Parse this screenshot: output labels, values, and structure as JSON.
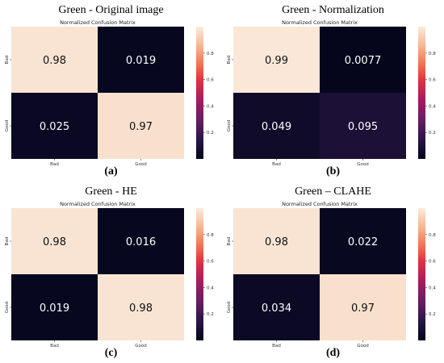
{
  "chart_data": [
    {
      "type": "heatmap",
      "heading": "Green - Original image",
      "caption": "(a)",
      "title": "Normalized Confusion Matrix",
      "row_labels": [
        "Bad",
        "Good"
      ],
      "col_labels": [
        "Bad",
        "Good"
      ],
      "values": [
        [
          0.98,
          0.019
        ],
        [
          0.025,
          0.97
        ]
      ],
      "cell_labels": [
        [
          "0.98",
          "0.019"
        ],
        [
          "0.025",
          "0.97"
        ]
      ],
      "colorbar": {
        "min": 0,
        "max": 1,
        "ticks": [
          "0.2",
          "0.4",
          "0.6",
          "0.8"
        ]
      }
    },
    {
      "type": "heatmap",
      "heading": "Green - Normalization",
      "caption": "(b)",
      "title": "Normalized Confusion Matrix",
      "row_labels": [
        "Bad",
        "Good"
      ],
      "col_labels": [
        "Bad",
        "Good"
      ],
      "values": [
        [
          0.99,
          0.0077
        ],
        [
          0.049,
          0.095
        ]
      ],
      "cell_labels": [
        [
          "0.99",
          "0.0077"
        ],
        [
          "0.049",
          "0.095"
        ]
      ],
      "colorbar": {
        "min": 0,
        "max": 1,
        "ticks": [
          "0.2",
          "0.4",
          "0.6",
          "0.8"
        ]
      }
    },
    {
      "type": "heatmap",
      "heading": "Green - HE",
      "caption": "(c)",
      "title": "Normalized Confusion Matrix",
      "row_labels": [
        "Bad",
        "Good"
      ],
      "col_labels": [
        "Bad",
        "Good"
      ],
      "values": [
        [
          0.98,
          0.016
        ],
        [
          0.019,
          0.98
        ]
      ],
      "cell_labels": [
        [
          "0.98",
          "0.016"
        ],
        [
          "0.019",
          "0.98"
        ]
      ],
      "colorbar": {
        "min": 0,
        "max": 1,
        "ticks": [
          "0.2",
          "0.4",
          "0.6",
          "0.8"
        ]
      }
    },
    {
      "type": "heatmap",
      "heading": "Green – CLAHE",
      "caption": "(d)",
      "title": "Normalized Confusion Matrix",
      "row_labels": [
        "Bad",
        "Good"
      ],
      "col_labels": [
        "Bad",
        "Good"
      ],
      "values": [
        [
          0.98,
          0.022
        ],
        [
          0.034,
          0.97
        ]
      ],
      "cell_labels": [
        [
          "0.98",
          "0.022"
        ],
        [
          "0.034",
          "0.97"
        ]
      ],
      "colorbar": {
        "min": 0,
        "max": 1,
        "ticks": [
          "0.2",
          "0.4",
          "0.6",
          "0.8"
        ]
      }
    }
  ]
}
